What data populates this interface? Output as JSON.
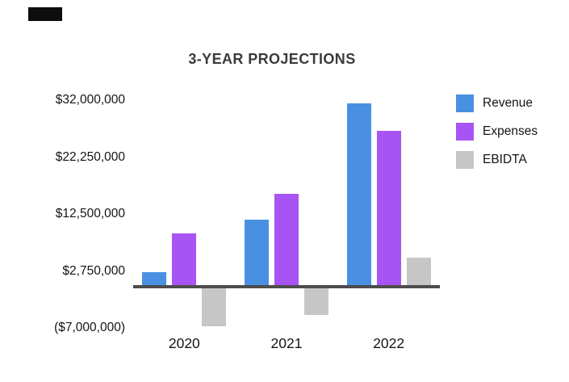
{
  "title": "3-YEAR PROJECTIONS",
  "colors": {
    "revenue": "#4a90e2",
    "expenses": "#a854f4",
    "ebidta": "#c6c6c6",
    "axis_line": "#4d4d4d",
    "accent_bar": "#0d0d0d",
    "text": "#141414"
  },
  "chart_data": {
    "type": "bar",
    "title": "3-YEAR PROJECTIONS",
    "categories": [
      "2020",
      "2021",
      "2022"
    ],
    "series": [
      {
        "name": "Revenue",
        "color": "#4a90e2",
        "values": [
          2500000,
          11500000,
          31500000
        ]
      },
      {
        "name": "Expenses",
        "color": "#a854f4",
        "values": [
          9250000,
          16000000,
          26750000
        ]
      },
      {
        "name": "EBIDTA",
        "color": "#c6c6c6",
        "values": [
          -6750000,
          -4750000,
          5000000
        ]
      }
    ],
    "yticks": [
      {
        "label": "$32,000,000",
        "value": 32000000
      },
      {
        "label": "$22,250,000",
        "value": 22250000
      },
      {
        "label": "$12,500,000",
        "value": 12500000
      },
      {
        "label": "$2,750,000",
        "value": 2750000
      },
      {
        "label": "($7,000,000)",
        "value": -7000000
      }
    ],
    "ylim": [
      -7000000,
      32000000
    ],
    "xlabel": "",
    "ylabel": "",
    "grid": false,
    "legend_position": "right",
    "legend_entries": [
      "Revenue",
      "Expenses",
      "EBIDTA"
    ]
  }
}
